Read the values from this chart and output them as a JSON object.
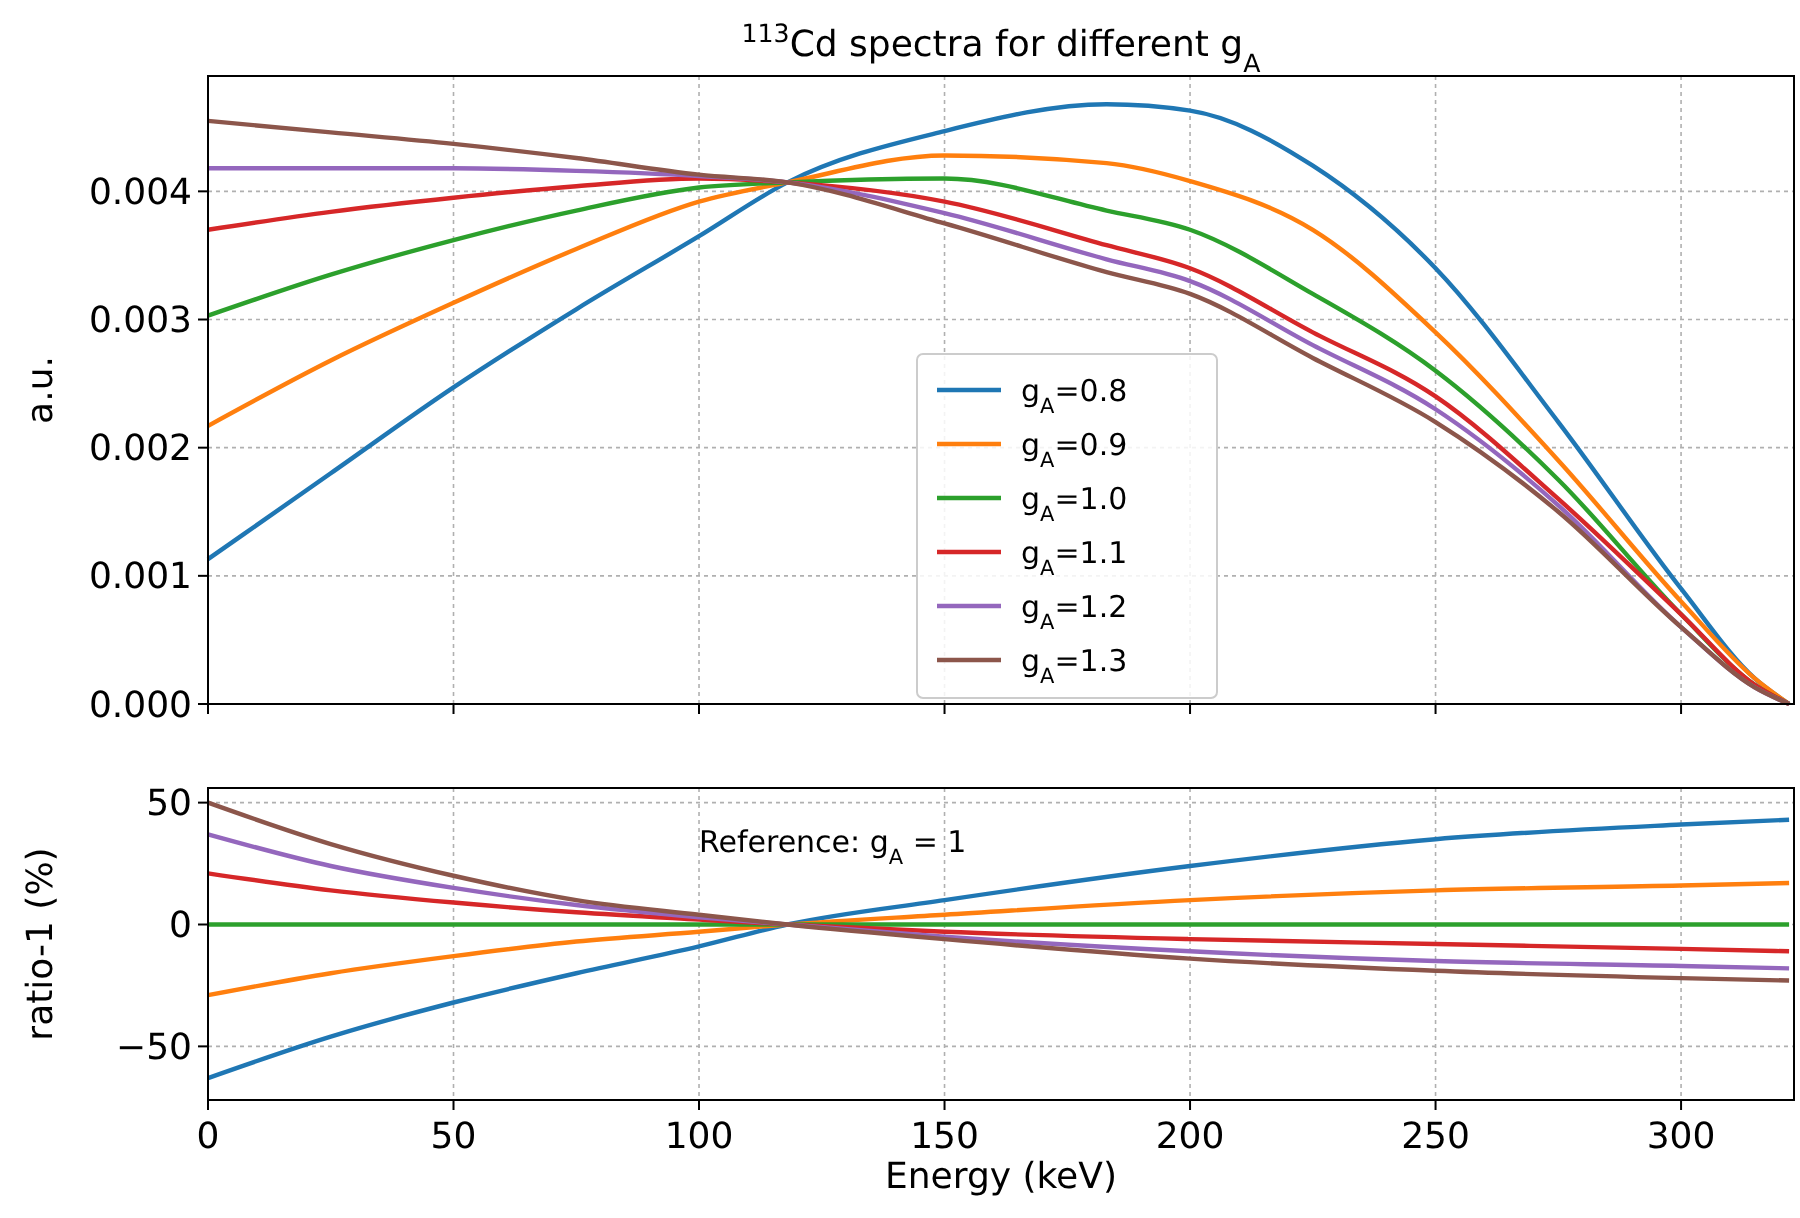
{
  "chart_data": [
    {
      "type": "line",
      "title": "$^{113}$Cd spectra for different g$_{A}$",
      "ylabel": "a.u.",
      "xlim": [
        0,
        323
      ],
      "xticks": [
        0,
        50,
        100,
        150,
        200,
        250,
        300
      ],
      "ylim": [
        0,
        0.0049
      ],
      "yticks": [
        {
          "value": 0,
          "label": "0.000"
        },
        {
          "value": 0.001,
          "label": "0.001"
        },
        {
          "value": 0.002,
          "label": "0.002"
        },
        {
          "value": 0.003,
          "label": "0.003"
        },
        {
          "value": 0.004,
          "label": "0.004"
        }
      ],
      "grid": true,
      "legend": "center",
      "tick_labels": "y",
      "line_style": "solid",
      "marker": "none",
      "x": [
        0,
        25,
        50,
        75,
        100,
        118,
        150,
        183,
        200,
        225,
        250,
        275,
        300,
        315,
        322
      ],
      "series": [
        {
          "name": "g$_{A}$=0.8",
          "color": "#1f77b4",
          "values": [
            0.00113,
            0.0018,
            0.00247,
            0.00308,
            0.00365,
            0.00407,
            0.00447,
            0.00468,
            0.00463,
            0.0042,
            0.0034,
            0.0022,
            0.0009,
            0.0002,
            0
          ]
        },
        {
          "name": "g$_{A}$=0.9",
          "color": "#ff7f0e",
          "values": [
            0.00217,
            0.00268,
            0.00313,
            0.00355,
            0.00392,
            0.00407,
            0.00428,
            0.00422,
            0.00408,
            0.0037,
            0.0029,
            0.0019,
            0.0008,
            0.0002,
            0
          ]
        },
        {
          "name": "g$_{A}$=1.0",
          "color": "#2ca02c",
          "values": [
            0.00303,
            0.00335,
            0.00362,
            0.00385,
            0.00403,
            0.00407,
            0.0041,
            0.00385,
            0.0037,
            0.0032,
            0.0026,
            0.00175,
            0.0007,
            0.00015,
            0
          ]
        },
        {
          "name": "g$_{A}$=1.1",
          "color": "#d62728",
          "values": [
            0.0037,
            0.00384,
            0.00395,
            0.00404,
            0.0041,
            0.00407,
            0.00392,
            0.00358,
            0.0034,
            0.0029,
            0.0024,
            0.0016,
            0.0007,
            0.00015,
            0
          ]
        },
        {
          "name": "g$_{A}$=1.2",
          "color": "#9467bd",
          "values": [
            0.00418,
            0.00418,
            0.00418,
            0.00416,
            0.00412,
            0.00407,
            0.00383,
            0.00347,
            0.0033,
            0.0028,
            0.0023,
            0.00155,
            0.0006,
            0.00013,
            0
          ]
        },
        {
          "name": "g$_{A}$=1.3",
          "color": "#8c564b",
          "values": [
            0.00455,
            0.00446,
            0.00437,
            0.00426,
            0.00413,
            0.00407,
            0.00375,
            0.00337,
            0.0032,
            0.0027,
            0.0022,
            0.0015,
            0.0006,
            0.00013,
            0
          ]
        }
      ]
    },
    {
      "type": "line",
      "xlabel": "Energy (keV)",
      "ylabel": "ratio-1 (%)",
      "xlim": [
        0,
        323
      ],
      "xticks": [
        0,
        50,
        100,
        150,
        200,
        250,
        300
      ],
      "ylim": [
        -72,
        56
      ],
      "yticks": [
        -50,
        0,
        50
      ],
      "grid": true,
      "line_style": "solid",
      "marker": "none",
      "annotations": [
        "Reference: g$_{A}$ = 1"
      ],
      "x": [
        0,
        25,
        50,
        75,
        100,
        118,
        150,
        200,
        250,
        300,
        322
      ],
      "series": [
        {
          "color": "#1f77b4",
          "values": [
            -63,
            -46,
            -32,
            -20,
            -9,
            0,
            10,
            24,
            35,
            41,
            43
          ]
        },
        {
          "color": "#ff7f0e",
          "values": [
            -29,
            -20,
            -13,
            -7,
            -3,
            0,
            4,
            10,
            14,
            16,
            17
          ]
        },
        {
          "color": "#2ca02c",
          "values": [
            0,
            0,
            0,
            0,
            0,
            0,
            0,
            0,
            0,
            0,
            0
          ]
        },
        {
          "color": "#d62728",
          "values": [
            21,
            14,
            9,
            5,
            2,
            0,
            -3,
            -6,
            -8,
            -10,
            -11
          ]
        },
        {
          "color": "#9467bd",
          "values": [
            37,
            24,
            15,
            8,
            3,
            0,
            -5,
            -11,
            -15,
            -17,
            -18
          ]
        },
        {
          "color": "#8c564b",
          "values": [
            50,
            33,
            20,
            10,
            4,
            0,
            -6,
            -14,
            -19,
            -22,
            -23
          ]
        }
      ]
    }
  ]
}
